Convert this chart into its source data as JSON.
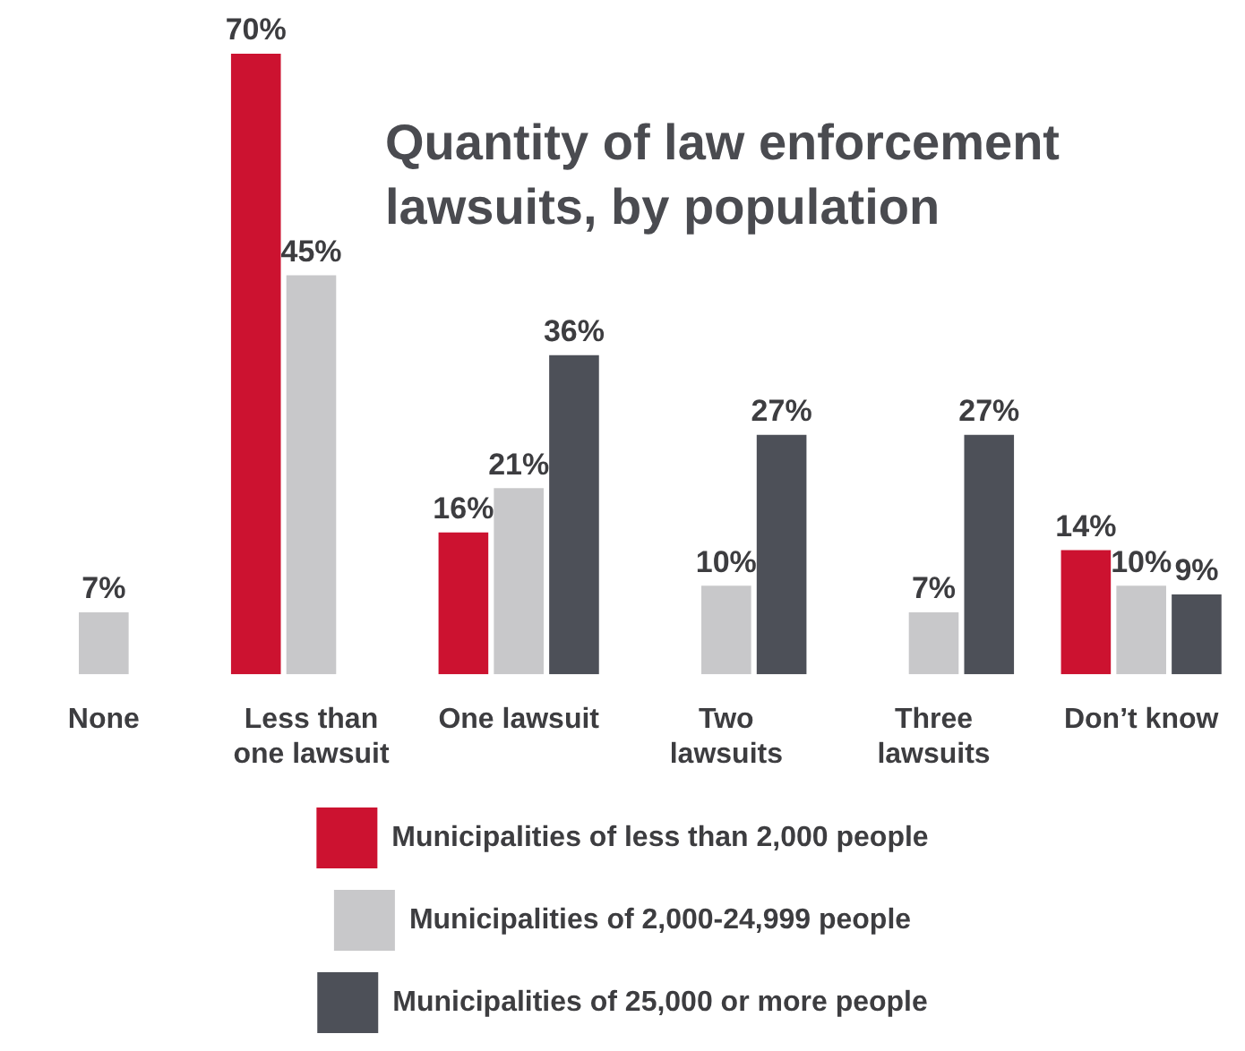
{
  "chart_data": {
    "type": "bar",
    "title": "Quantity of law enforcement lawsuits, by population",
    "categories": [
      "None",
      "Less than one lawsuit",
      "One lawsuit",
      "Two lawsuits",
      "Three lawsuits",
      "Don’t know"
    ],
    "series": [
      {
        "name": "Municipalities of less than 2,000 people",
        "color": "#cc1230",
        "values": [
          null,
          70,
          16,
          null,
          null,
          14
        ],
        "value_labels": [
          null,
          "70%",
          "16%",
          null,
          null,
          "14%"
        ]
      },
      {
        "name": "Municipalities of 2,000-24,999 people",
        "color": "#c8c8ca",
        "values": [
          7,
          45,
          21,
          10,
          7,
          10
        ],
        "value_labels": [
          "7%",
          "45%",
          "21%",
          "10%",
          "7%",
          "10%"
        ]
      },
      {
        "name": "Municipalities of 25,000 or more people",
        "color": "#4d5058",
        "values": [
          null,
          null,
          36,
          27,
          27,
          9
        ],
        "value_labels": [
          null,
          null,
          "36%",
          "27%",
          "27%",
          "9%"
        ]
      }
    ],
    "legend": "bottom",
    "grid": false
  }
}
